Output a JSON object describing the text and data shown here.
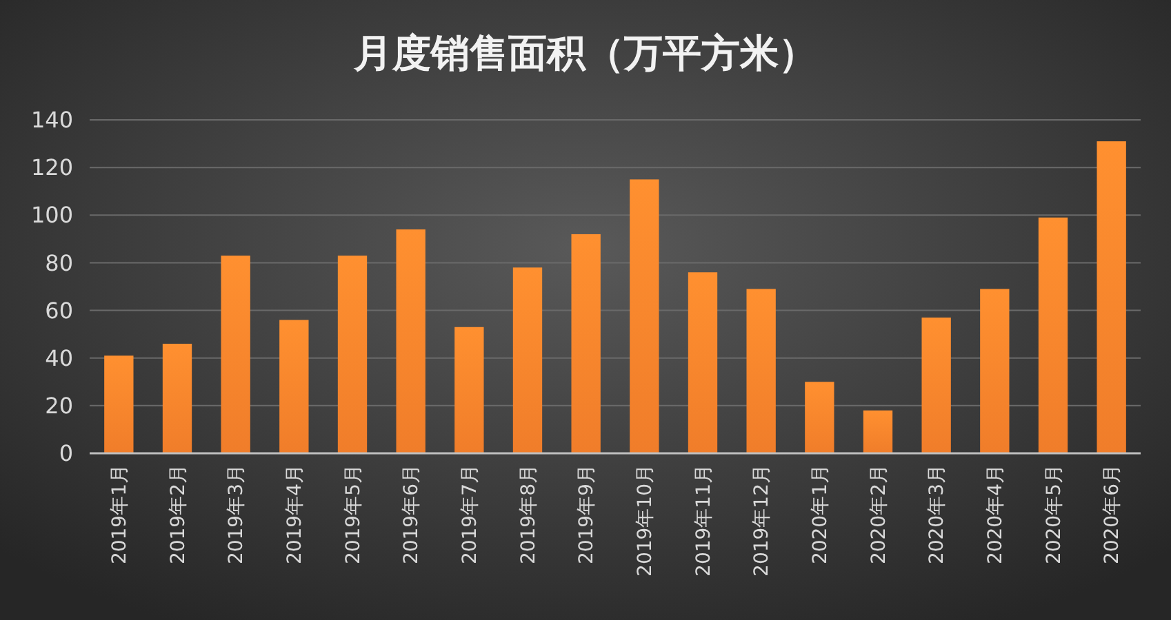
{
  "chart_data": {
    "type": "bar",
    "title": "月度销售面积（万平方米）",
    "categories": [
      "2019年1月",
      "2019年2月",
      "2019年3月",
      "2019年4月",
      "2019年5月",
      "2019年6月",
      "2019年7月",
      "2019年8月",
      "2019年9月",
      "2019年10月",
      "2019年11月",
      "2019年12月",
      "2020年1月",
      "2020年2月",
      "2020年3月",
      "2020年4月",
      "2020年5月",
      "2020年6月"
    ],
    "values": [
      41,
      46,
      83,
      56,
      83,
      94,
      53,
      78,
      92,
      115,
      76,
      69,
      30,
      18,
      57,
      69,
      99,
      131
    ],
    "color": "#f07d2a",
    "ylim": [
      0,
      140
    ],
    "yticks": [
      0,
      20,
      40,
      60,
      80,
      100,
      120,
      140
    ],
    "grid": "y"
  }
}
